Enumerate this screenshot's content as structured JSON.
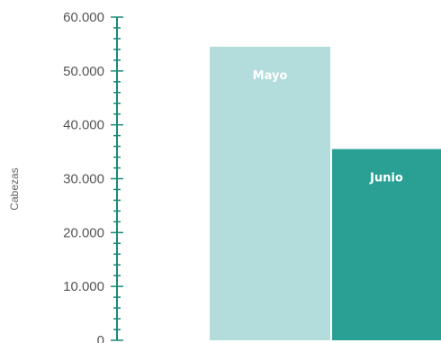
{
  "chart_data": {
    "type": "bar",
    "title": "",
    "xlabel": "",
    "ylabel": "Cabezas",
    "categories": [
      "Mayo",
      "Junio"
    ],
    "values": [
      54500,
      35500
    ],
    "ylim": [
      0,
      60000
    ],
    "yticks": [
      "0",
      "10.000",
      "20.000",
      "30.000",
      "40.000",
      "50.000",
      "60.000"
    ],
    "colors": {
      "Mayo": "#b3dcdc",
      "Junio": "#2aa094",
      "axis": "#1a8a78"
    },
    "grid": false,
    "legend": "none"
  }
}
